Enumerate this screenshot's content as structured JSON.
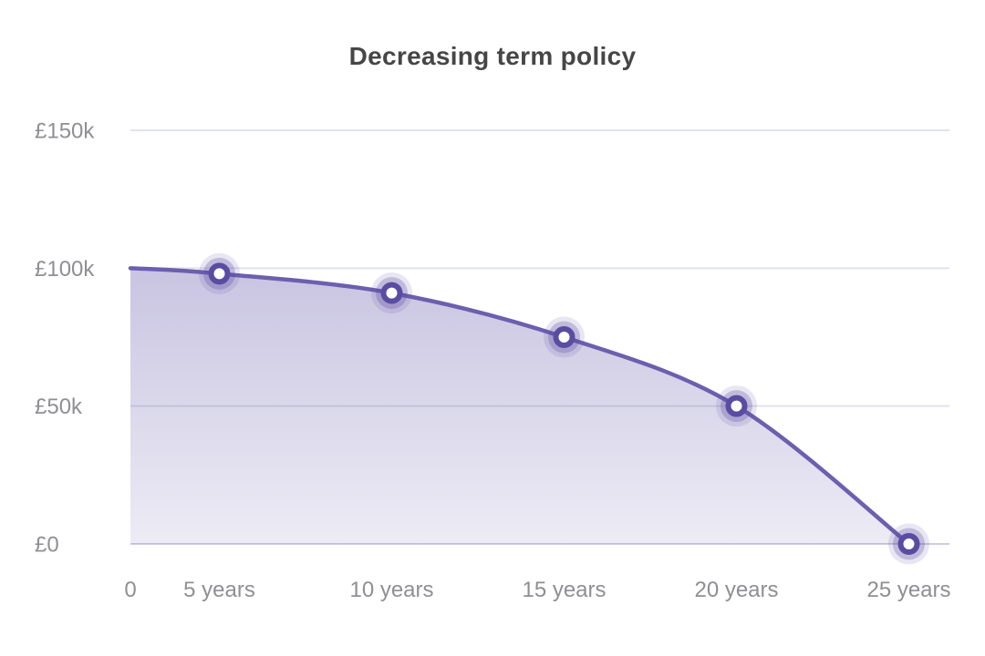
{
  "chart_title": "Decreasing term policy",
  "chart_data": {
    "type": "area",
    "title": "Decreasing term policy",
    "x": [
      0,
      5,
      10,
      15,
      20,
      25
    ],
    "x_unit": "years",
    "values": [
      100000,
      98000,
      91000,
      75000,
      50000,
      0
    ],
    "x_tick_labels": [
      "0",
      "5 years",
      "10 years",
      "15 years",
      "20 years",
      "25 years"
    ],
    "y_ticks": [
      0,
      50000,
      100000,
      150000
    ],
    "y_tick_labels": [
      "£0",
      "£50k",
      "£100k",
      "£150k"
    ],
    "ylim": [
      0,
      150000
    ],
    "xlabel": "",
    "ylabel": "",
    "grid": "horizontal",
    "legend": "none",
    "marker_years": [
      5,
      10,
      15,
      20,
      25
    ],
    "colors": {
      "line": "#6c5fae",
      "marker_ring": "#5a4ca1",
      "marker_fill": "#ffffff",
      "marker_halo": "#5a4da0",
      "area_base": "#685cac",
      "area_top_alpha": 0.36,
      "area_bottom_alpha": 0.12,
      "gridline": "#e0e2ee",
      "zero_line": "#cfccdf",
      "axis_text": "#8f8f94",
      "title_text": "#464646"
    }
  }
}
